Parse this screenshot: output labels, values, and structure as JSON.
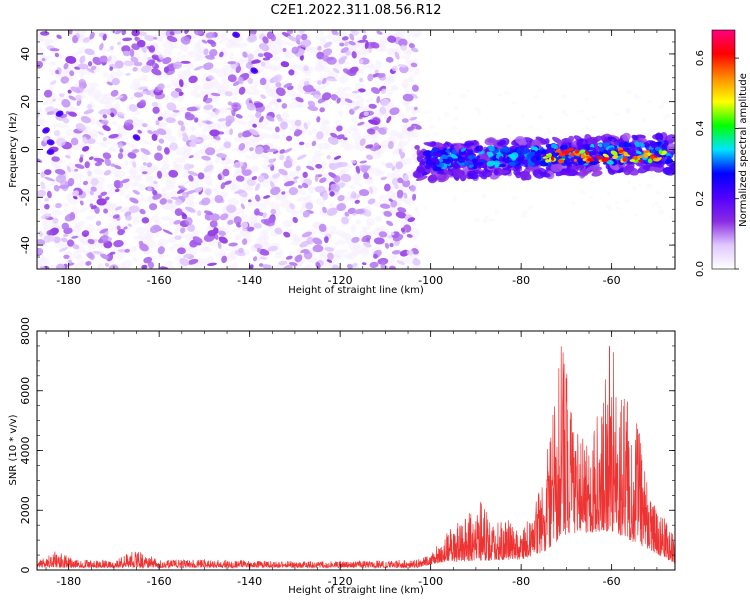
{
  "title": "C2E1.2022.311.08.56.R12",
  "chart_data": [
    {
      "type": "heatmap",
      "xlabel": "Height of straight line (km)",
      "ylabel": "Frequency (Hz)",
      "xlim": [
        -187,
        -46
      ],
      "ylim": [
        -50,
        50
      ],
      "xticks": [
        -180,
        -160,
        -140,
        -120,
        -100,
        -80,
        -60
      ],
      "yticks": [
        -40,
        -20,
        0,
        20,
        40
      ],
      "regions": [
        {
          "description": "broadband noise",
          "x": [
            -187,
            -103
          ],
          "y": [
            -50,
            50
          ],
          "amplitude": 0.06
        },
        {
          "description": "signal band",
          "x": [
            -103,
            -46
          ],
          "y": [
            -12,
            6
          ],
          "amplitude": 0.35
        },
        {
          "description": "peak cluster",
          "x": [
            -75,
            -48
          ],
          "y": [
            -5,
            0
          ],
          "amplitude": 0.6
        }
      ],
      "colorbar": {
        "label": "Normalized spectral amplitude",
        "range": [
          0.0,
          0.68
        ],
        "ticks": [
          0.0,
          0.2,
          0.4,
          0.6
        ],
        "colormap": [
          "#ffffff",
          "#e0c8ff",
          "#8a2be2",
          "#5000ff",
          "#0000ff",
          "#00e5ff",
          "#00ff00",
          "#ffff00",
          "#ff8c00",
          "#ff0000",
          "#ff007f"
        ]
      }
    },
    {
      "type": "line",
      "xlabel": "Height of straight line (km)",
      "ylabel": "SNR (10 * v/v)",
      "xlim": [
        -187,
        -46
      ],
      "ylim": [
        0,
        8000
      ],
      "xticks": [
        -180,
        -160,
        -140,
        -120,
        -100,
        -80,
        -60
      ],
      "yticks": [
        0,
        2000,
        4000,
        6000,
        8000
      ],
      "color": "#ee3333",
      "envelope": [
        {
          "x": -187,
          "y": 300
        },
        {
          "x": -183,
          "y": 650
        },
        {
          "x": -178,
          "y": 350
        },
        {
          "x": -170,
          "y": 320
        },
        {
          "x": -165,
          "y": 700
        },
        {
          "x": -160,
          "y": 330
        },
        {
          "x": -150,
          "y": 380
        },
        {
          "x": -140,
          "y": 320
        },
        {
          "x": -130,
          "y": 300
        },
        {
          "x": -120,
          "y": 300
        },
        {
          "x": -110,
          "y": 320
        },
        {
          "x": -103,
          "y": 350
        },
        {
          "x": -100,
          "y": 500
        },
        {
          "x": -97,
          "y": 1200
        },
        {
          "x": -93,
          "y": 1700
        },
        {
          "x": -89,
          "y": 2300
        },
        {
          "x": -86,
          "y": 1500
        },
        {
          "x": -83,
          "y": 1800
        },
        {
          "x": -80,
          "y": 1200
        },
        {
          "x": -77,
          "y": 2200
        },
        {
          "x": -75,
          "y": 3200
        },
        {
          "x": -73,
          "y": 5200
        },
        {
          "x": -71,
          "y": 7800
        },
        {
          "x": -69,
          "y": 5800
        },
        {
          "x": -67,
          "y": 4200
        },
        {
          "x": -65,
          "y": 4900
        },
        {
          "x": -62,
          "y": 6700
        },
        {
          "x": -60,
          "y": 7900
        },
        {
          "x": -58,
          "y": 6000
        },
        {
          "x": -56,
          "y": 5600
        },
        {
          "x": -54,
          "y": 4800
        },
        {
          "x": -52,
          "y": 2800
        },
        {
          "x": -50,
          "y": 2000
        },
        {
          "x": -48,
          "y": 1700
        },
        {
          "x": -46,
          "y": 1100
        }
      ],
      "floor": [
        {
          "x": -187,
          "y": 80
        },
        {
          "x": -103,
          "y": 80
        },
        {
          "x": -98,
          "y": 250
        },
        {
          "x": -90,
          "y": 300
        },
        {
          "x": -80,
          "y": 350
        },
        {
          "x": -75,
          "y": 600
        },
        {
          "x": -70,
          "y": 1200
        },
        {
          "x": -60,
          "y": 1300
        },
        {
          "x": -52,
          "y": 700
        },
        {
          "x": -46,
          "y": 200
        }
      ]
    }
  ]
}
